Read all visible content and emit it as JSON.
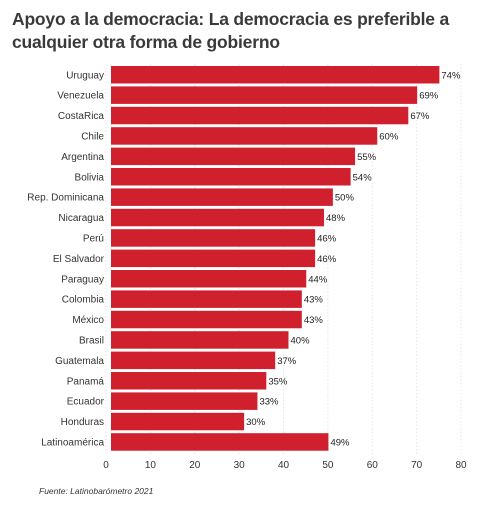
{
  "chart_data": {
    "type": "bar",
    "orientation": "horizontal",
    "title": "Apoyo a la democracia: La democracia es preferible a cualquier otra forma de gobierno",
    "categories": [
      "Uruguay",
      "Venezuela",
      "CostaRica",
      "Chile",
      "Argentina",
      "Bolivia",
      "Rep. Dominicana",
      "Nicaragua",
      "Perú",
      "El Salvador",
      "Paraguay",
      "Colombia",
      "México",
      "Brasil",
      "Guatemala",
      "Panamá",
      "Ecuador",
      "Honduras",
      "Latinoamérica"
    ],
    "values": [
      74,
      69,
      67,
      60,
      55,
      54,
      50,
      48,
      46,
      46,
      44,
      43,
      43,
      40,
      37,
      35,
      33,
      30,
      49
    ],
    "value_labels": [
      "74%",
      "69%",
      "67%",
      "60%",
      "55%",
      "54%",
      "50%",
      "48%",
      "46%",
      "46%",
      "44%",
      "43%",
      "43%",
      "40%",
      "37%",
      "35%",
      "33%",
      "30%",
      "49%"
    ],
    "xlim": [
      0,
      80
    ],
    "xticks": [
      0,
      10,
      20,
      30,
      40,
      50,
      60,
      70,
      80
    ],
    "grid": true,
    "bar_color": "#d0202e",
    "source": "Fuente: Latinobarómetro 2021"
  }
}
